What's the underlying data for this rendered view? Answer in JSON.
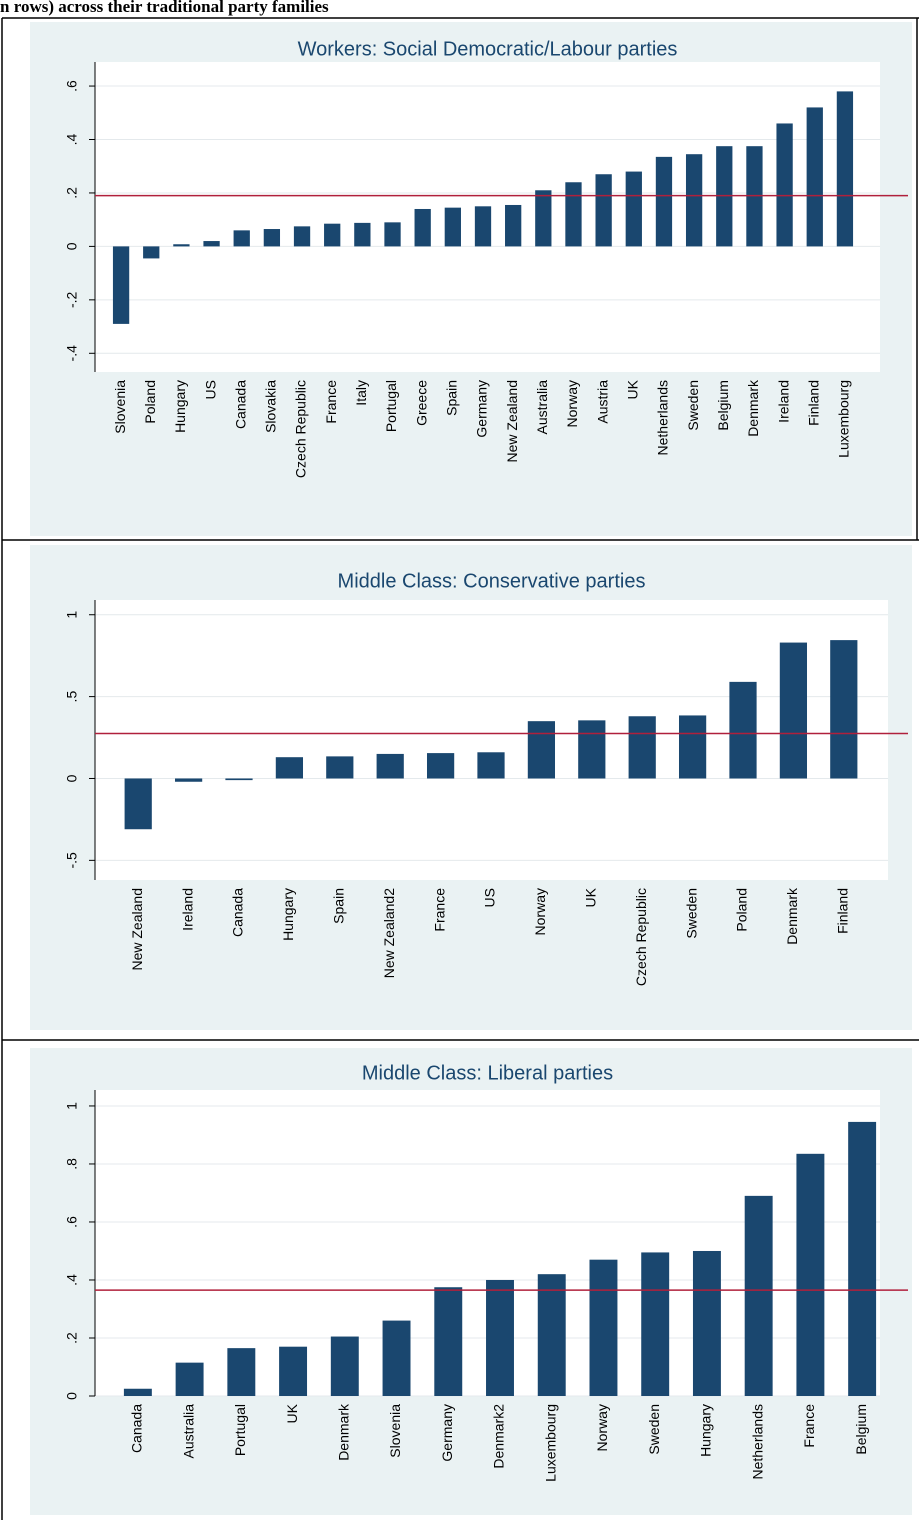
{
  "heading": "n rows) across their traditional party families",
  "chart_data": [
    {
      "type": "bar",
      "title": "Workers: Social Democratic/Labour parties",
      "categories": [
        "Slovenia",
        "Poland",
        "Hungary",
        "US",
        "Canada",
        "Slovakia",
        "Czech Republic",
        "France",
        "Italy",
        "Portugal",
        "Greece",
        "Spain",
        "Germany",
        "New Zealand",
        "Australia",
        "Norway",
        "Austria",
        "UK",
        "Netherlands",
        "Sweden",
        "Belgium",
        "Denmark",
        "Ireland",
        "Finland",
        "Luxembourg"
      ],
      "values": [
        -0.29,
        -0.045,
        0.008,
        0.02,
        0.06,
        0.065,
        0.075,
        0.085,
        0.088,
        0.09,
        0.14,
        0.145,
        0.15,
        0.155,
        0.21,
        0.24,
        0.27,
        0.28,
        0.335,
        0.345,
        0.375,
        0.375,
        0.46,
        0.52,
        0.58
      ],
      "color": "#1a476f",
      "reference_line": 0.19,
      "reference_color": "#b0203c",
      "ylim": [
        -0.47,
        0.69
      ],
      "yticks": [
        {
          "value": -0.4,
          "label": "-.4"
        },
        {
          "value": -0.2,
          "label": "-.2"
        },
        0,
        {
          "value": 0.2,
          "label": ".2"
        },
        {
          "value": 0.4,
          "label": ".4"
        },
        {
          "value": 0.6,
          "label": ".6"
        }
      ],
      "grid": true
    },
    {
      "type": "bar",
      "title": "Middle Class: Conservative parties",
      "categories": [
        "New Zealand",
        "Ireland",
        "Canada",
        "Hungary",
        "Spain",
        "New Zealand2",
        "France",
        "US",
        "Norway",
        "UK",
        "Czech Republic",
        "Sweden",
        "Poland",
        "Denmark",
        "Finland"
      ],
      "values": [
        -0.31,
        -0.02,
        -0.01,
        0.13,
        0.135,
        0.15,
        0.155,
        0.16,
        0.35,
        0.355,
        0.38,
        0.385,
        0.59,
        0.83,
        0.845
      ],
      "color": "#1a476f",
      "reference_line": 0.275,
      "reference_color": "#b0203c",
      "ylim": [
        -0.62,
        1.09
      ],
      "yticks": [
        {
          "value": -0.5,
          "label": "-.5"
        },
        0,
        {
          "value": 0.5,
          "label": ".5"
        },
        1
      ],
      "grid": true
    },
    {
      "type": "bar",
      "title": "Middle Class: Liberal parties",
      "categories": [
        "Canada",
        "Australia",
        "Portugal",
        "UK",
        "Denmark",
        "Slovenia",
        "Germany",
        "Denmark2",
        "Luxembourg",
        "Norway",
        "Sweden",
        "Hungary",
        "Netherlands",
        "France",
        "Belgium"
      ],
      "values": [
        0.025,
        0.115,
        0.165,
        0.17,
        0.205,
        0.26,
        0.375,
        0.4,
        0.42,
        0.47,
        0.495,
        0.5,
        0.69,
        0.835,
        0.945
      ],
      "color": "#1a476f",
      "reference_line": 0.365,
      "reference_color": "#b0203c",
      "ylim": [
        0,
        1.055
      ],
      "yticks": [
        0,
        {
          "value": 0.2,
          "label": ".2"
        },
        {
          "value": 0.4,
          "label": ".4"
        },
        {
          "value": 0.6,
          "label": ".6"
        },
        {
          "value": 0.8,
          "label": ".8"
        },
        1
      ],
      "grid": true
    }
  ]
}
